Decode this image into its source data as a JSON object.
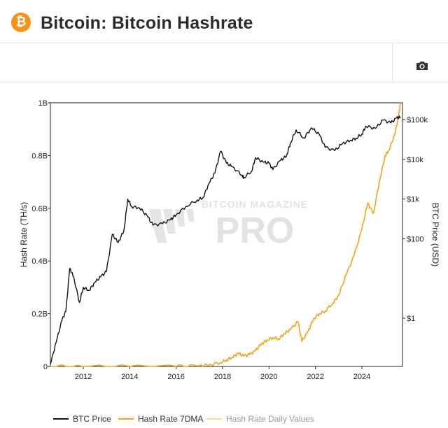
{
  "header": {
    "logo_glyph": "₿",
    "logo_icon": "bitcoin-icon",
    "title": "Bitcoin: Bitcoin Hashrate",
    "brand_color": "#f7931a"
  },
  "toolbar": {
    "camera_icon": "camera-icon"
  },
  "watermark": {
    "line1": "BITCOIN MAGAZINE",
    "line2": "PRO"
  },
  "chart_data": {
    "type": "line",
    "x_ticks": [
      "2012",
      "2014",
      "2016",
      "2018",
      "2020",
      "2022",
      "2024"
    ],
    "x_range": [
      "2010-08",
      "2025-10"
    ],
    "left_axis": {
      "label": "Hash Rate (TH/s)",
      "ticks": [
        "0",
        "0.2B",
        "0.4B",
        "0.6B",
        "0.8B",
        "1B"
      ],
      "range": [
        0,
        1000000000
      ]
    },
    "right_axis": {
      "label": "BTC Price (USD)",
      "scale": "log",
      "ticks": [
        "$1",
        "$100",
        "$1k",
        "$10k",
        "$100k"
      ]
    },
    "series": [
      {
        "name": "BTC Price",
        "color": "#111111",
        "axis": "right",
        "points": [
          [
            "2010-08",
            0.07
          ],
          [
            "2010-11",
            0.25
          ],
          [
            "2011-02",
            0.9
          ],
          [
            "2011-04",
            1.5
          ],
          [
            "2011-06",
            18
          ],
          [
            "2011-08",
            11
          ],
          [
            "2011-11",
            2.5
          ],
          [
            "2012-01",
            6
          ],
          [
            "2012-04",
            5
          ],
          [
            "2012-07",
            8
          ],
          [
            "2012-10",
            11
          ],
          [
            "2013-01",
            15
          ],
          [
            "2013-04",
            130
          ],
          [
            "2013-07",
            80
          ],
          [
            "2013-10",
            160
          ],
          [
            "2013-12",
            1000
          ],
          [
            "2014-02",
            650
          ],
          [
            "2014-06",
            600
          ],
          [
            "2014-10",
            380
          ],
          [
            "2015-01",
            220
          ],
          [
            "2015-06",
            240
          ],
          [
            "2015-10",
            300
          ],
          [
            "2016-01",
            400
          ],
          [
            "2016-06",
            650
          ],
          [
            "2016-12",
            950
          ],
          [
            "2017-03",
            1100
          ],
          [
            "2017-06",
            2500
          ],
          [
            "2017-09",
            4500
          ],
          [
            "2017-12",
            16000
          ],
          [
            "2018-03",
            8000
          ],
          [
            "2018-06",
            6500
          ],
          [
            "2018-11",
            4000
          ],
          [
            "2018-12",
            3500
          ],
          [
            "2019-04",
            5000
          ],
          [
            "2019-06",
            11000
          ],
          [
            "2019-10",
            8500
          ],
          [
            "2020-01",
            8000
          ],
          [
            "2020-03",
            5500
          ],
          [
            "2020-07",
            9500
          ],
          [
            "2020-10",
            12000
          ],
          [
            "2020-12",
            25000
          ],
          [
            "2021-03",
            55000
          ],
          [
            "2021-07",
            34000
          ],
          [
            "2021-11",
            62000
          ],
          [
            "2022-03",
            42000
          ],
          [
            "2022-06",
            20000
          ],
          [
            "2022-11",
            16500
          ],
          [
            "2023-03",
            25000
          ],
          [
            "2023-07",
            30000
          ],
          [
            "2023-10",
            34000
          ],
          [
            "2024-01",
            43000
          ],
          [
            "2024-03",
            68000
          ],
          [
            "2024-08",
            60000
          ],
          [
            "2024-12",
            97000
          ],
          [
            "2025-04",
            82000
          ],
          [
            "2025-07",
            110000
          ],
          [
            "2025-09",
            114000
          ]
        ]
      },
      {
        "name": "Hash Rate 7DMA",
        "color": "#f2a31b",
        "axis": "left",
        "points": [
          [
            "2010-08",
            0
          ],
          [
            "2012-01",
            0.0
          ],
          [
            "2014-01",
            1e-05
          ],
          [
            "2016-01",
            0.0008
          ],
          [
            "2017-01",
            0.0025
          ],
          [
            "2017-06",
            0.006
          ],
          [
            "2017-12",
            0.015
          ],
          [
            "2018-03",
            0.025
          ],
          [
            "2018-06",
            0.035
          ],
          [
            "2018-09",
            0.05
          ],
          [
            "2018-12",
            0.04
          ],
          [
            "2019-03",
            0.045
          ],
          [
            "2019-06",
            0.06
          ],
          [
            "2019-09",
            0.085
          ],
          [
            "2019-12",
            0.1
          ],
          [
            "2020-03",
            0.11
          ],
          [
            "2020-06",
            0.105
          ],
          [
            "2020-09",
            0.125
          ],
          [
            "2020-12",
            0.14
          ],
          [
            "2021-04",
            0.17
          ],
          [
            "2021-06",
            0.095
          ],
          [
            "2021-09",
            0.13
          ],
          [
            "2021-12",
            0.18
          ],
          [
            "2022-03",
            0.2
          ],
          [
            "2022-06",
            0.21
          ],
          [
            "2022-10",
            0.24
          ],
          [
            "2023-01",
            0.27
          ],
          [
            "2023-05",
            0.35
          ],
          [
            "2023-09",
            0.42
          ],
          [
            "2024-01",
            0.52
          ],
          [
            "2024-04",
            0.62
          ],
          [
            "2024-07",
            0.58
          ],
          [
            "2024-10",
            0.7
          ],
          [
            "2025-01",
            0.8
          ],
          [
            "2025-03",
            0.82
          ],
          [
            "2025-06",
            0.88
          ],
          [
            "2025-08",
            0.95
          ],
          [
            "2025-09",
            1.0
          ]
        ]
      },
      {
        "name": "Hash Rate Daily Values",
        "color": "#f5dc96",
        "axis": "left",
        "visible": false
      }
    ],
    "legend_position": "bottom-left",
    "grid": false
  }
}
